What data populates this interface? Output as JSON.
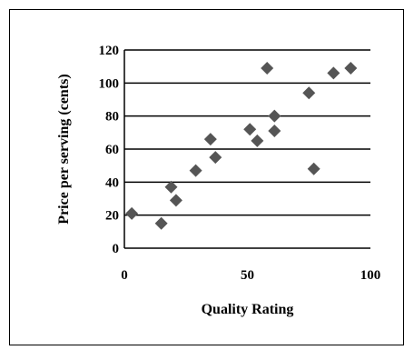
{
  "chart_data": {
    "type": "scatter",
    "title": "",
    "xlabel": "Quality Rating",
    "ylabel": "Price per serving (cents)",
    "xlim": [
      0,
      100
    ],
    "ylim": [
      0,
      120
    ],
    "x_ticks": [
      "0",
      "50",
      "100"
    ],
    "y_ticks": [
      "0",
      "20",
      "40",
      "60",
      "80",
      "100",
      "120"
    ],
    "grid": "horizontal",
    "legend": "none",
    "marker": "diamond",
    "marker_color": "#555555",
    "points": [
      {
        "x": 3,
        "y": 21
      },
      {
        "x": 15,
        "y": 15
      },
      {
        "x": 19,
        "y": 37
      },
      {
        "x": 21,
        "y": 29
      },
      {
        "x": 29,
        "y": 47
      },
      {
        "x": 35,
        "y": 66
      },
      {
        "x": 37,
        "y": 55
      },
      {
        "x": 51,
        "y": 72
      },
      {
        "x": 54,
        "y": 65
      },
      {
        "x": 58,
        "y": 109
      },
      {
        "x": 61,
        "y": 80
      },
      {
        "x": 61,
        "y": 71
      },
      {
        "x": 75,
        "y": 94
      },
      {
        "x": 77,
        "y": 48
      },
      {
        "x": 85,
        "y": 106
      },
      {
        "x": 92,
        "y": 109
      }
    ]
  }
}
